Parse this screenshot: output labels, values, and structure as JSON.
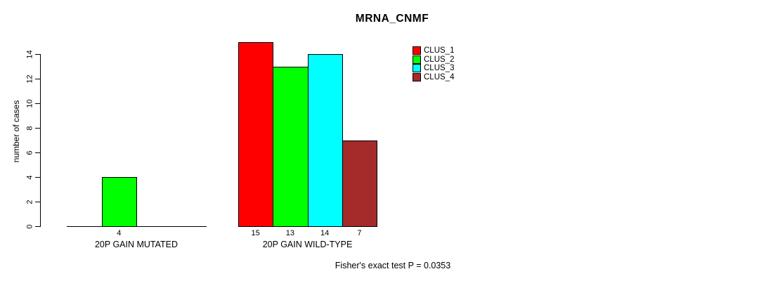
{
  "background_color": "#FFFFFF",
  "chart_data": {
    "type": "bar",
    "title": "MRNA_CNMF",
    "xlabel": "",
    "ylabel": "number of cases",
    "ylim": [
      0,
      14
    ],
    "yticks": [
      0,
      2,
      4,
      6,
      8,
      10,
      12,
      14
    ],
    "grid": false,
    "legend_position": "top-right",
    "series": [
      "CLUS_1",
      "CLUS_2",
      "CLUS_3",
      "CLUS_4"
    ],
    "series_colors": [
      "#FF0000",
      "#00FF00",
      "#00FFFF",
      "#A52A2A"
    ],
    "categories": [
      "20P GAIN MUTATED",
      "20P GAIN WILD-TYPE"
    ],
    "groups": [
      {
        "label": "20P GAIN MUTATED",
        "values": [
          0,
          4,
          0,
          0
        ],
        "bar_labels": [
          "",
          "4",
          "",
          ""
        ]
      },
      {
        "label": "20P GAIN WILD-TYPE",
        "values": [
          15,
          13,
          14,
          7
        ],
        "bar_labels": [
          "15",
          "13",
          "14",
          "7"
        ]
      }
    ],
    "annotation": "Fisher's exact test P = 0.0353"
  },
  "legend": {
    "items": [
      {
        "label": "CLUS_1",
        "color": "#FF0000"
      },
      {
        "label": "CLUS_2",
        "color": "#00FF00"
      },
      {
        "label": "CLUS_3",
        "color": "#00FFFF"
      },
      {
        "label": "CLUS_4",
        "color": "#A52A2A"
      }
    ]
  }
}
